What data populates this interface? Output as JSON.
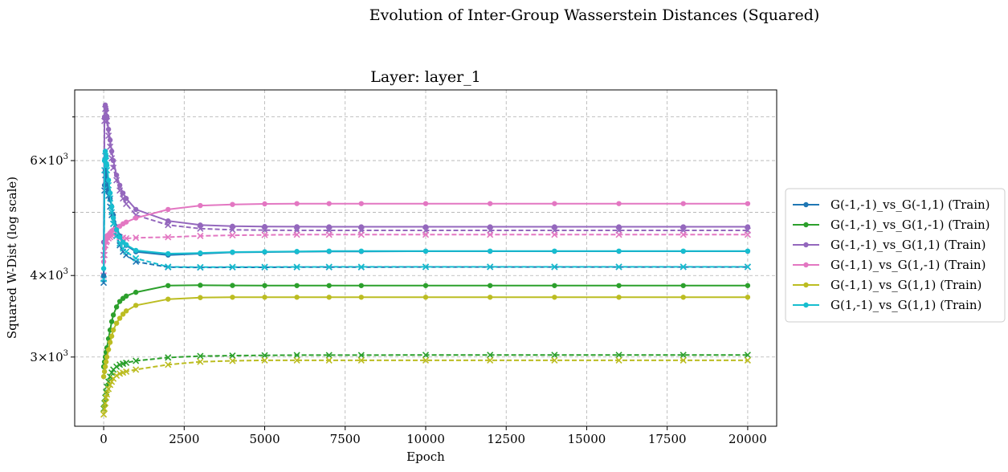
{
  "chart_data": {
    "type": "line",
    "suptitle": "Evolution of Inter-Group Wasserstein Distances (Squared)",
    "title": "Layer: layer_1",
    "xlabel": "Epoch",
    "ylabel": "Squared W-Dist (log scale)",
    "xlim": [
      -900,
      20900
    ],
    "ylim": [
      2350,
      7700
    ],
    "yscale": "log",
    "grid": true,
    "legend_position": "right-outside",
    "x_ticks": [
      {
        "value": 0,
        "label": "0"
      },
      {
        "value": 2500,
        "label": "2500"
      },
      {
        "value": 5000,
        "label": "5000"
      },
      {
        "value": 7500,
        "label": "7500"
      },
      {
        "value": 10000,
        "label": "10000"
      },
      {
        "value": 12500,
        "label": "12500"
      },
      {
        "value": 15000,
        "label": "15000"
      },
      {
        "value": 17500,
        "label": "17500"
      },
      {
        "value": 20000,
        "label": "20000"
      }
    ],
    "y_ticks": [
      {
        "value": 3000,
        "base": "3",
        "exp": "3"
      },
      {
        "value": 4000,
        "base": "4",
        "exp": "3"
      },
      {
        "value": 6000,
        "base": "6",
        "exp": "3"
      }
    ],
    "y_minor_ticks": [
      5000,
      7000
    ],
    "x": [
      0,
      25,
      50,
      75,
      100,
      150,
      200,
      250,
      300,
      400,
      500,
      600,
      700,
      1000,
      2000,
      3000,
      4000,
      5000,
      6000,
      7000,
      8000,
      10000,
      12000,
      14000,
      16000,
      18000,
      20000
    ],
    "series": [
      {
        "name": "G(-1,-1)_vs_G(-1,1) (Train)",
        "color": "#1f77b4",
        "dash": false,
        "marker": "dot",
        "values": [
          4000,
          5500,
          5800,
          5700,
          5600,
          5400,
          5250,
          5100,
          4950,
          4750,
          4600,
          4500,
          4450,
          4350,
          4300,
          4320,
          4340,
          4345,
          4350,
          4355,
          4355,
          4357,
          4357,
          4357,
          4357,
          4357,
          4357
        ]
      },
      {
        "name": "G(-1,-1)_vs_G(1,-1) (Train)",
        "color": "#2ca02c",
        "dash": false,
        "marker": "dot",
        "values": [
          2900,
          2950,
          3000,
          3050,
          3100,
          3200,
          3300,
          3400,
          3480,
          3580,
          3650,
          3690,
          3720,
          3770,
          3860,
          3865,
          3862,
          3860,
          3860,
          3860,
          3860,
          3860,
          3860,
          3860,
          3860,
          3860,
          3860
        ]
      },
      {
        "name": "G(-1,-1)_vs_G(1,1) (Train)",
        "color": "#9467bd",
        "dash": false,
        "marker": "dot",
        "values": [
          4500,
          7000,
          7300,
          7200,
          7000,
          6700,
          6450,
          6200,
          6000,
          5700,
          5500,
          5350,
          5250,
          5050,
          4850,
          4780,
          4760,
          4755,
          4752,
          4750,
          4750,
          4750,
          4750,
          4750,
          4750,
          4750,
          4750
        ]
      },
      {
        "name": "G(-1,1)_vs_G(1,-1) (Train)",
        "color": "#e377c2",
        "dash": false,
        "marker": "dot",
        "values": [
          4200,
          4400,
          4500,
          4550,
          4600,
          4620,
          4650,
          4680,
          4700,
          4730,
          4760,
          4800,
          4830,
          4900,
          5050,
          5120,
          5140,
          5150,
          5155,
          5155,
          5155,
          5155,
          5155,
          5155,
          5155,
          5155,
          5155
        ]
      },
      {
        "name": "G(-1,1)_vs_G(1,1) (Train)",
        "color": "#bcbd22",
        "dash": false,
        "marker": "dot",
        "values": [
          2800,
          2850,
          2900,
          2950,
          3000,
          3080,
          3160,
          3230,
          3300,
          3380,
          3440,
          3490,
          3530,
          3600,
          3680,
          3700,
          3705,
          3705,
          3705,
          3705,
          3705,
          3705,
          3705,
          3705,
          3705,
          3705,
          3705
        ]
      },
      {
        "name": "G(1,-1)_vs_G(1,1) (Train)",
        "color": "#17becf",
        "dash": false,
        "marker": "dot",
        "values": [
          4100,
          6000,
          6200,
          6100,
          5900,
          5600,
          5350,
          5100,
          4900,
          4700,
          4580,
          4500,
          4460,
          4370,
          4320,
          4330,
          4345,
          4350,
          4355,
          4360,
          4360,
          4360,
          4360,
          4360,
          4360,
          4360,
          4360
        ]
      },
      {
        "color": "#1f77b4",
        "dash": true,
        "marker": "x",
        "values": [
          3900,
          5400,
          5700,
          5600,
          5500,
          5300,
          5100,
          4950,
          4800,
          4600,
          4450,
          4350,
          4300,
          4200,
          4120,
          4115,
          4118,
          4118,
          4120,
          4120,
          4120,
          4122,
          4122,
          4122,
          4122,
          4122,
          4122
        ]
      },
      {
        "color": "#2ca02c",
        "dash": true,
        "marker": "x",
        "values": [
          2500,
          2550,
          2600,
          2650,
          2700,
          2750,
          2800,
          2840,
          2870,
          2900,
          2920,
          2930,
          2940,
          2960,
          2995,
          3010,
          3015,
          3018,
          3020,
          3020,
          3020,
          3022,
          3022,
          3022,
          3022,
          3022,
          3022
        ]
      },
      {
        "color": "#9467bd",
        "dash": true,
        "marker": "x",
        "values": [
          4300,
          6900,
          7200,
          7100,
          6900,
          6550,
          6300,
          6050,
          5850,
          5600,
          5400,
          5250,
          5150,
          4950,
          4780,
          4720,
          4700,
          4695,
          4690,
          4690,
          4690,
          4690,
          4690,
          4690,
          4690,
          4690,
          4690
        ]
      },
      {
        "color": "#e377c2",
        "dash": true,
        "marker": "x",
        "values": [
          4000,
          4300,
          4450,
          4500,
          4520,
          4560,
          4580,
          4600,
          4620,
          4600,
          4580,
          4570,
          4560,
          4570,
          4580,
          4600,
          4610,
          4615,
          4620,
          4620,
          4620,
          4620,
          4620,
          4620,
          4620,
          4620,
          4620
        ]
      },
      {
        "color": "#bcbd22",
        "dash": true,
        "marker": "x",
        "values": [
          2450,
          2500,
          2550,
          2600,
          2630,
          2680,
          2720,
          2750,
          2780,
          2810,
          2830,
          2840,
          2850,
          2870,
          2920,
          2950,
          2960,
          2965,
          2965,
          2965,
          2965,
          2965,
          2965,
          2965,
          2965,
          2965,
          2965
        ]
      },
      {
        "color": "#17becf",
        "dash": true,
        "marker": "x",
        "values": [
          3950,
          5800,
          6100,
          6000,
          5800,
          5500,
          5250,
          5000,
          4800,
          4600,
          4480,
          4400,
          4350,
          4250,
          4125,
          4120,
          4122,
          4122,
          4123,
          4124,
          4124,
          4125,
          4125,
          4125,
          4125,
          4125,
          4125
        ]
      }
    ]
  }
}
